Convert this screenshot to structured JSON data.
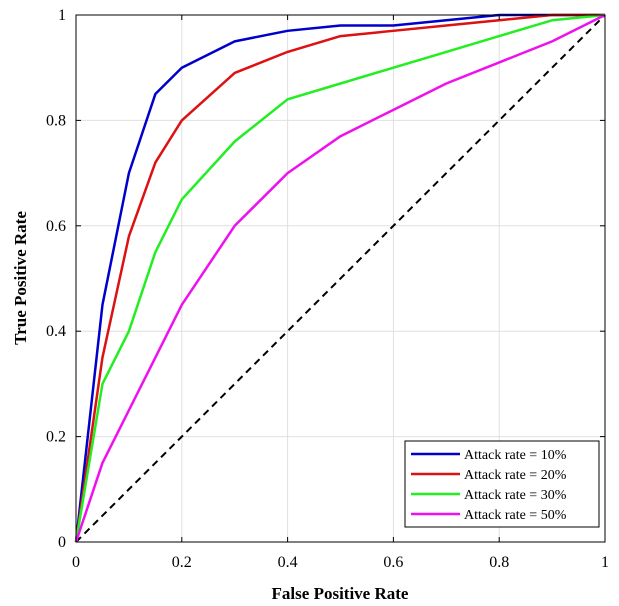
{
  "chart_data": {
    "type": "line",
    "title": "",
    "xlabel": "False Positive Rate",
    "ylabel": "True Positive Rate",
    "xlim": [
      0,
      1
    ],
    "ylim": [
      0,
      1
    ],
    "grid": true,
    "legend_position": "bottom-right",
    "xticks": [
      {
        "value": 0,
        "label": "0"
      },
      {
        "value": 0.2,
        "label": "0.2"
      },
      {
        "value": 0.4,
        "label": "0.4"
      },
      {
        "value": 0.6,
        "label": "0.6"
      },
      {
        "value": 0.8,
        "label": "0.8"
      },
      {
        "value": 1,
        "label": "1"
      }
    ],
    "yticks": [
      {
        "value": 0,
        "label": "0"
      },
      {
        "value": 0.2,
        "label": "0.2"
      },
      {
        "value": 0.4,
        "label": "0.4"
      },
      {
        "value": 0.6,
        "label": "0.6"
      },
      {
        "value": 0.8,
        "label": "0.8"
      },
      {
        "value": 1,
        "label": "1"
      }
    ],
    "series": [
      {
        "name": "Attack rate = 10%",
        "color": "#0000cc",
        "x": [
          0,
          0.05,
          0.1,
          0.15,
          0.2,
          0.3,
          0.4,
          0.5,
          0.6,
          0.7,
          0.8,
          0.9,
          1.0
        ],
        "y": [
          0,
          0.45,
          0.7,
          0.85,
          0.9,
          0.95,
          0.97,
          0.98,
          0.98,
          0.99,
          1.0,
          1.0,
          1.0
        ]
      },
      {
        "name": "Attack rate = 20%",
        "color": "#dd1111",
        "x": [
          0,
          0.05,
          0.1,
          0.15,
          0.2,
          0.3,
          0.4,
          0.5,
          0.6,
          0.7,
          0.8,
          0.9,
          1.0
        ],
        "y": [
          0,
          0.35,
          0.58,
          0.72,
          0.8,
          0.89,
          0.93,
          0.96,
          0.97,
          0.98,
          0.99,
          1.0,
          1.0
        ]
      },
      {
        "name": "Attack rate = 30%",
        "color": "#22ee22",
        "x": [
          0,
          0.05,
          0.1,
          0.15,
          0.2,
          0.3,
          0.4,
          0.5,
          0.6,
          0.7,
          0.8,
          0.9,
          1.0
        ],
        "y": [
          0,
          0.3,
          0.4,
          0.55,
          0.65,
          0.76,
          0.84,
          0.87,
          0.9,
          0.93,
          0.96,
          0.99,
          1.0
        ]
      },
      {
        "name": "Attack rate = 50%",
        "color": "#ee11ee",
        "x": [
          0,
          0.05,
          0.1,
          0.15,
          0.2,
          0.3,
          0.4,
          0.5,
          0.6,
          0.7,
          0.8,
          0.9,
          1.0
        ],
        "y": [
          0,
          0.15,
          0.25,
          0.35,
          0.45,
          0.6,
          0.7,
          0.77,
          0.82,
          0.87,
          0.91,
          0.95,
          1.0
        ]
      }
    ],
    "reference_line": {
      "name": "random-guess-diagonal",
      "color": "#000000",
      "dashed": true,
      "x": [
        0,
        1
      ],
      "y": [
        0,
        1
      ]
    }
  }
}
